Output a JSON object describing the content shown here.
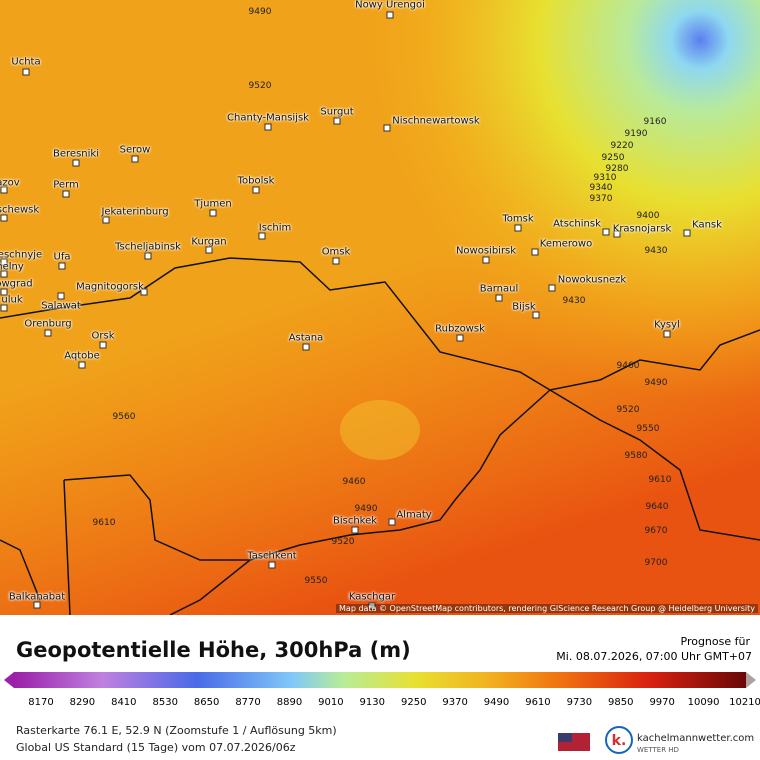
{
  "map": {
    "cities": [
      "Nowy Urengoi",
      "Uchta",
      "Chanty-Mansijsk",
      "Surgut",
      "Nischnewartowsk",
      "Beresniki",
      "Serow",
      "azov",
      "Perm",
      "Tobolsk",
      "schewsk",
      "Jekaterinburg",
      "Tjumen",
      "Tomsk",
      "Atschinsk",
      "Krasnojarsk",
      "Kansk",
      "Ischim",
      "Tscheljabinsk",
      "Kurgan",
      "Omsk",
      "Nowosibirsk",
      "Kemerowo",
      "eschnyje",
      "Ufa",
      "helny",
      "Magnitogorsk",
      "Barnaul",
      "Nowokusnezk",
      "owgrad",
      "uluk",
      "Bijsk",
      "Salawat",
      "Orenburg",
      "Orsk",
      "Rubzowsk",
      "Kysyl",
      "Aqtobe",
      "Astana",
      "Almaty",
      "Bischkek",
      "Taschkent",
      "Balkanabat",
      "Kaschgar"
    ],
    "contour_labels": [
      "9490",
      "9520",
      "9160",
      "9190",
      "9220",
      "9250",
      "9280",
      "9310",
      "9340",
      "9370",
      "9400",
      "9430",
      "9430",
      "9460",
      "9490",
      "9520",
      "9550",
      "9580",
      "9610",
      "9640",
      "9670",
      "9700",
      "9560",
      "9610",
      "9460",
      "9490",
      "9520",
      "9550"
    ],
    "attribution": "Map data © OpenStreetMap contributors, rendering GIScience Research Group @ Heidelberg University"
  },
  "legend": {
    "title": "Geopotentielle Höhe, 300hPa (m)",
    "forecast_label": "Prognose für",
    "forecast_time": "Mi. 08.07.2026, 07:00 Uhr GMT+07",
    "scale": [
      8170,
      8290,
      8410,
      8530,
      8650,
      8770,
      8890,
      9010,
      9130,
      9250,
      9370,
      9490,
      9610,
      9730,
      9850,
      9970,
      10090,
      10210
    ],
    "info": [
      "Rasterkarte 76.1 E, 52.9 N (Zoomstufe 1 / Auflösung 5km)",
      "Global US Standard (15 Tage) vom 07.07.2026/06z"
    ],
    "logo": "kachelmannwetter.com",
    "logo_sub": "WETTER HD"
  }
}
